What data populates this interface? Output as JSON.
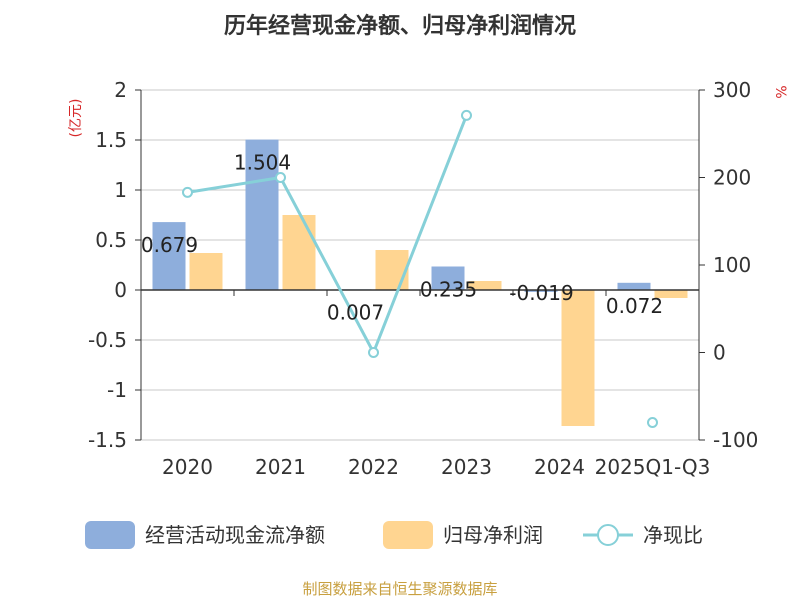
{
  "title": "历年经营现金净额、归母净利润情况",
  "source": "制图数据来自恒生聚源数据库",
  "colors": {
    "cash": "#8eaedc",
    "profit": "#ffd591",
    "ratio": "#86d0d8",
    "axis_unit": "#d62728",
    "grid": "#c8c8c8",
    "text": "#333333",
    "source": "#c8a040"
  },
  "chart_data": {
    "type": "bar",
    "title": "历年经营现金净额、归母净利润情况",
    "categories": [
      "2020",
      "2021",
      "2022",
      "2023",
      "2024",
      "2025Q1-Q3"
    ],
    "left_axis": {
      "label": "(亿元)",
      "ylim": [
        -1.5,
        2
      ],
      "ticks": [
        "2",
        "1.5",
        "1",
        "0.5",
        "0",
        "-0.5",
        "-1",
        "-1.5"
      ],
      "tick_values": [
        2,
        1.5,
        1,
        0.5,
        0,
        -0.5,
        -1,
        -1.5
      ]
    },
    "right_axis": {
      "label": "%",
      "ylim": [
        -100,
        300
      ],
      "ticks": [
        "300",
        "200",
        "100",
        "0",
        "-100"
      ],
      "tick_values": [
        300,
        200,
        100,
        0,
        -100
      ]
    },
    "series": [
      {
        "name": "经营活动现金流净额",
        "kind": "bar",
        "axis": "left",
        "values": [
          0.679,
          1.504,
          0.007,
          0.235,
          -0.019,
          0.072
        ],
        "labels": [
          "0.679",
          "1.504",
          "0.007",
          "0.235",
          "-0.019",
          "0.072"
        ]
      },
      {
        "name": "归母净利润",
        "kind": "bar",
        "axis": "left",
        "values": [
          0.37,
          0.75,
          0.4,
          0.09,
          -1.36,
          -0.08
        ]
      },
      {
        "name": "净现比",
        "kind": "line",
        "axis": "right",
        "values": [
          183,
          200,
          0,
          271,
          null,
          -80
        ]
      }
    ]
  }
}
